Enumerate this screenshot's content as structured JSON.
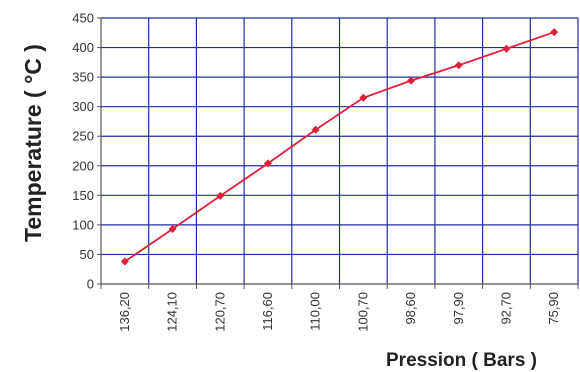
{
  "chart_data": {
    "type": "line",
    "title": "",
    "xlabel": "Pression ( Bars )",
    "ylabel": "Temperature ( °C )",
    "categories": [
      "136,20",
      "124,10",
      "120,70",
      "116,60",
      "110,00",
      "100,70",
      "98,60",
      "97,90",
      "92,70",
      "75,90"
    ],
    "series": [
      {
        "values": [
          38,
          93,
          149,
          204,
          261,
          315,
          344,
          370,
          398,
          426
        ]
      }
    ],
    "ylim": [
      0,
      450
    ],
    "yticks": [
      "0",
      "50",
      "100",
      "150",
      "200",
      "250",
      "300",
      "350",
      "400",
      "450"
    ],
    "grid": true,
    "colors": {
      "line": "#e0203a",
      "grid": "#1f2f9e",
      "text": "#222222"
    }
  }
}
